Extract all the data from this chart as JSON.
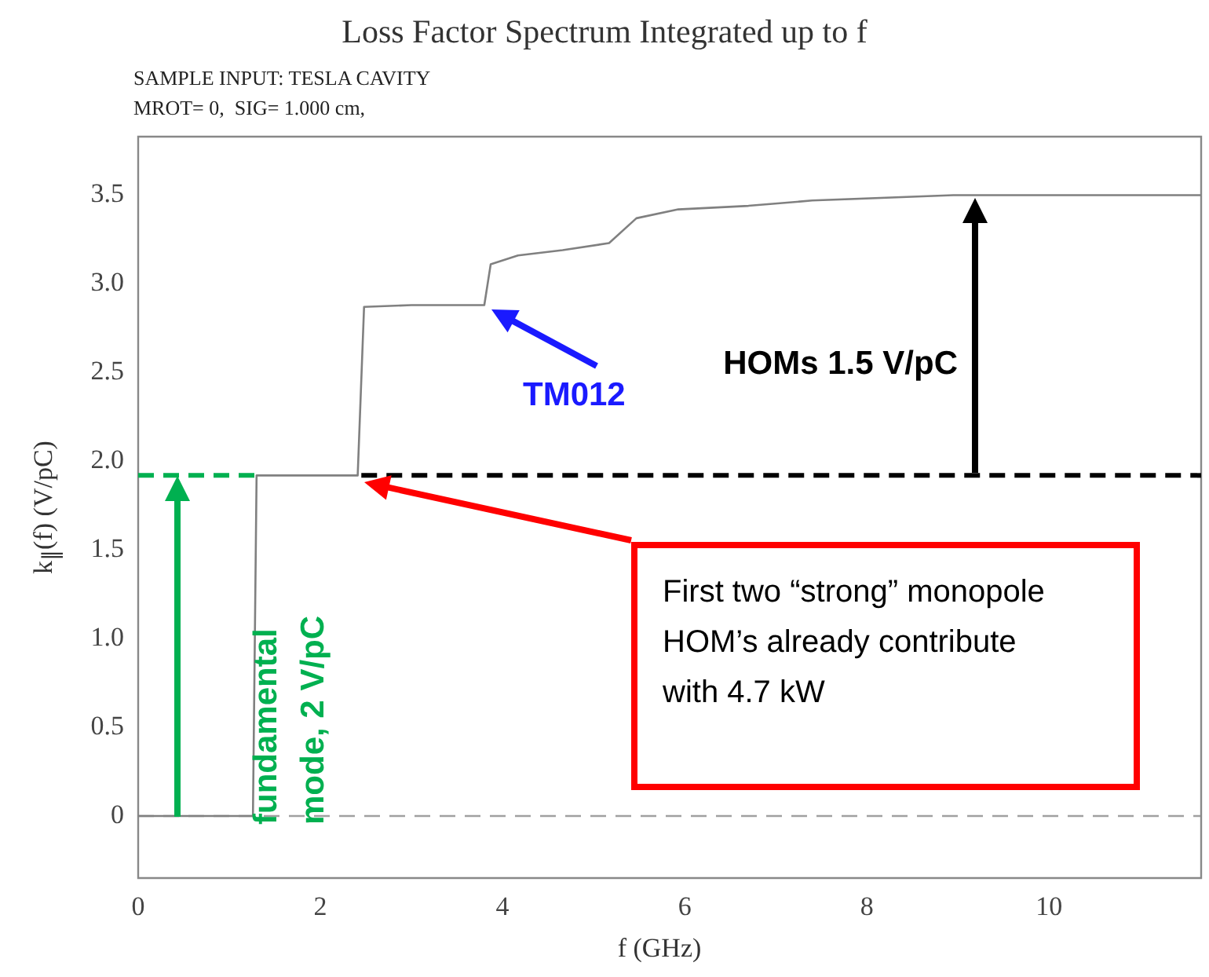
{
  "chart_data": {
    "type": "line",
    "title": "Loss Factor Spectrum Integrated up to f",
    "subtitle": "SAMPLE INPUT: TESLA CAVITY\nMROT= 0,  SIG= 1.000 cm,",
    "xlabel": "f (GHz)",
    "ylabel": "k$_{∥}$(f)  (V/pC)",
    "series": [
      {
        "color": "#808080",
        "x": [
          0,
          1.26,
          1.3,
          2.41,
          2.48,
          3.0,
          3.8,
          3.87,
          4.17,
          4.66,
          5.17,
          5.47,
          5.93,
          6.7,
          7.4,
          8.95,
          11.67
        ],
        "values": [
          0,
          0,
          1.92,
          1.92,
          2.87,
          2.88,
          2.88,
          3.11,
          3.16,
          3.19,
          3.23,
          3.37,
          3.42,
          3.44,
          3.47,
          3.5,
          3.5
        ]
      },
      {
        "color": "#00b050",
        "line_style": "dashed",
        "x": [
          0,
          1.3
        ],
        "values": [
          1.92,
          1.92
        ]
      },
      {
        "color": "#000000",
        "line_style": "dashed",
        "x": [
          2.45,
          11.67
        ],
        "values": [
          1.92,
          1.92
        ]
      }
    ],
    "ref_lines": [
      {
        "axis": "y",
        "value": 0,
        "color": "#a0a0a0",
        "line_style": "dashed"
      }
    ],
    "annotations": [
      "TM012",
      "HOMs  1.5 V/pC",
      "fundamental mode, 2 V/pC",
      "First two “strong” monopole HOM’s already contribute with 4.7 kW"
    ],
    "xlim": [
      0,
      11.67
    ],
    "xticks": [
      0,
      2,
      4,
      6,
      8,
      10
    ],
    "ylim": [
      -0.35,
      3.83
    ],
    "yticks": [
      0,
      0.5,
      {
        "value": 1,
        "label": "1.0"
      },
      1.5,
      {
        "value": 2,
        "label": "2.0"
      },
      2.5,
      {
        "value": 3,
        "label": "3.0"
      },
      3.5
    ],
    "grid": false,
    "legend": false,
    "marker": "none"
  }
}
